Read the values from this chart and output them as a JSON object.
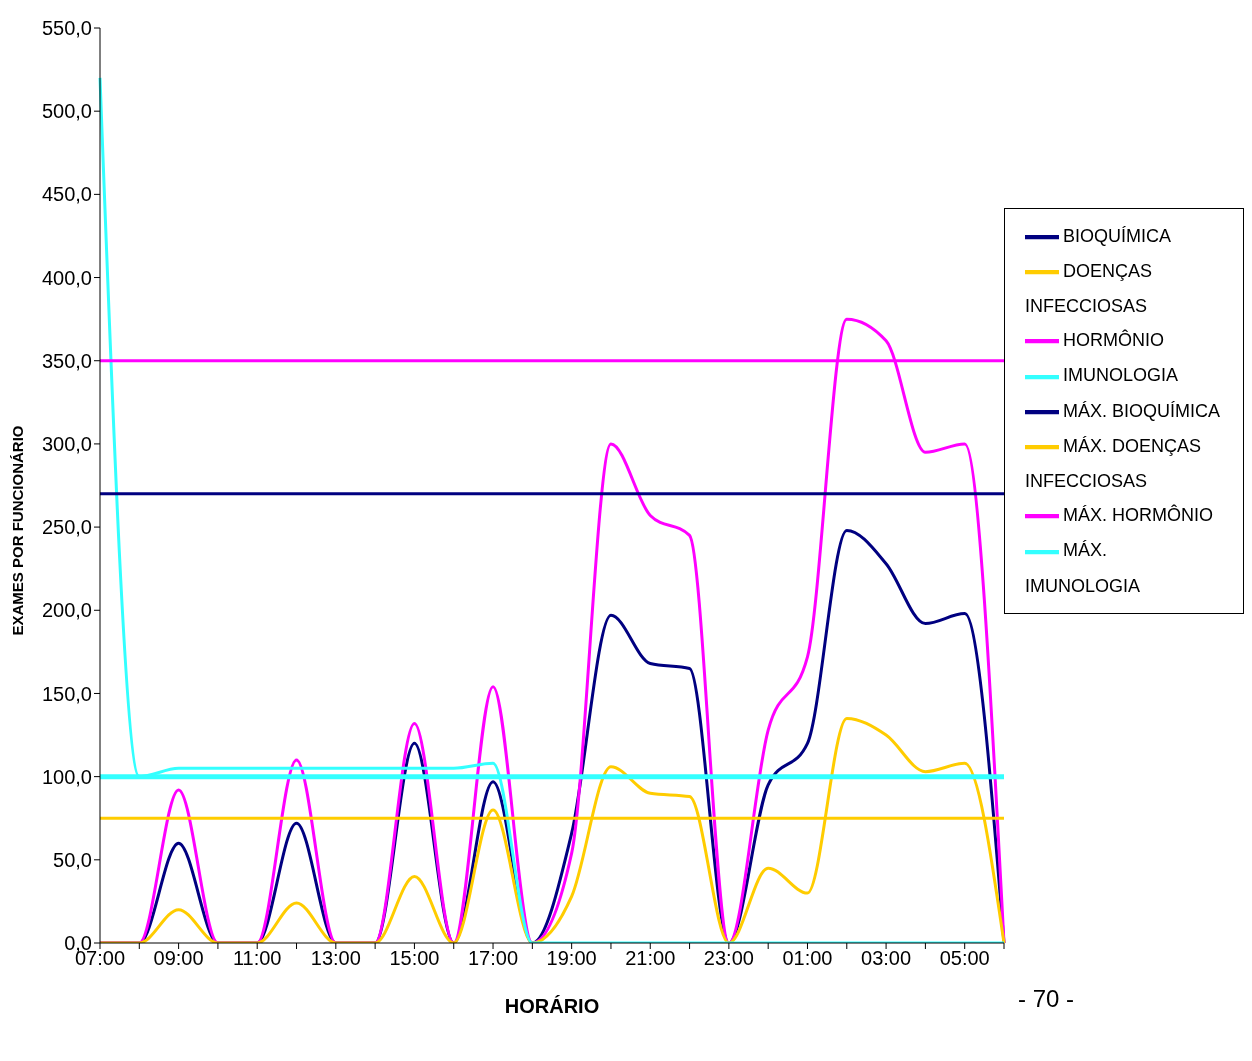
{
  "chart_data": {
    "type": "line",
    "xlabel": "HORÁRIO",
    "ylabel": "EXAMES POR FUNCIONÁRIO",
    "categories": [
      "07:00",
      null,
      "09:00",
      null,
      "11:00",
      null,
      "13:00",
      null,
      "15:00",
      null,
      "17:00",
      null,
      "19:00",
      null,
      "21:00",
      null,
      "23:00",
      null,
      "01:00",
      null,
      "03:00",
      null,
      "05:00",
      null
    ],
    "series": [
      {
        "name": "BIOQUÍMICA",
        "color": "#000080",
        "values": [
          0,
          0,
          60,
          0,
          0,
          72,
          0,
          0,
          120,
          0,
          97,
          0,
          66,
          197,
          168,
          165,
          0,
          95,
          120,
          248,
          228,
          192,
          198,
          0
        ]
      },
      {
        "name": "HORMÔNIO",
        "color": "#ff00ff",
        "values": [
          0,
          0,
          92,
          0,
          0,
          110,
          0,
          0,
          132,
          0,
          154,
          0,
          54,
          300,
          257,
          245,
          0,
          128,
          172,
          375,
          362,
          295,
          300,
          0
        ]
      },
      {
        "name": "DOENÇAS INFECCIOSAS",
        "color": "#ffcc00",
        "values": [
          0,
          0,
          20,
          0,
          0,
          24,
          0,
          0,
          40,
          0,
          80,
          0,
          28,
          106,
          90,
          88,
          0,
          45,
          30,
          135,
          125,
          103,
          108,
          0
        ]
      },
      {
        "name": "IMUNOLOGIA",
        "color": "#33ffff",
        "values": [
          520,
          100,
          105,
          105,
          105,
          105,
          105,
          105,
          105,
          105,
          108,
          0,
          0,
          0,
          0,
          0,
          0,
          0,
          0,
          0,
          0,
          0,
          0,
          0
        ]
      },
      {
        "name": "MÁX. BIOQUÍMICA",
        "color": "#000080",
        "values": [
          270,
          270,
          270,
          270,
          270,
          270,
          270,
          270,
          270,
          270,
          270,
          270,
          270,
          270,
          270,
          270,
          270,
          270,
          270,
          270,
          270,
          270,
          270,
          270
        ]
      },
      {
        "name": "MÁX. HORMÔNIO",
        "color": "#ff00ff",
        "values": [
          350,
          350,
          350,
          350,
          350,
          350,
          350,
          350,
          350,
          350,
          350,
          350,
          350,
          350,
          350,
          350,
          350,
          350,
          350,
          350,
          350,
          350,
          350,
          350
        ]
      },
      {
        "name": "MÁX. DOENÇAS INFECCIOSAS",
        "color": "#ffcc00",
        "values": [
          75,
          75,
          75,
          75,
          75,
          75,
          75,
          75,
          75,
          75,
          75,
          75,
          75,
          75,
          75,
          75,
          75,
          75,
          75,
          75,
          75,
          75,
          75,
          75
        ]
      },
      {
        "name": "MÁX. IMUNOLOGIA",
        "color": "#33ffff",
        "values": [
          100,
          100,
          100,
          100,
          100,
          100,
          100,
          100,
          100,
          100,
          100,
          100,
          100,
          100,
          100,
          100,
          100,
          100,
          100,
          100,
          100,
          100,
          100,
          100
        ]
      }
    ],
    "ylim": [
      0,
      550
    ],
    "yticks": [
      {
        "value": 0,
        "label": "0,0"
      },
      {
        "value": 50,
        "label": "50,0"
      },
      {
        "value": 100,
        "label": "100,0"
      },
      {
        "value": 150,
        "label": "150,0"
      },
      {
        "value": 200,
        "label": "200,0"
      },
      {
        "value": 250,
        "label": "250,0"
      },
      {
        "value": 300,
        "label": "300,0"
      },
      {
        "value": 350,
        "label": "350,0"
      },
      {
        "value": 400,
        "label": "400,0"
      },
      {
        "value": 450,
        "label": "450,0"
      },
      {
        "value": 500,
        "label": "500,0"
      },
      {
        "value": 550,
        "label": "550,0"
      }
    ],
    "legend": "right",
    "marker": "none",
    "line_style": "solid",
    "grid": false,
    "annotations": [
      "- 70 -"
    ]
  }
}
